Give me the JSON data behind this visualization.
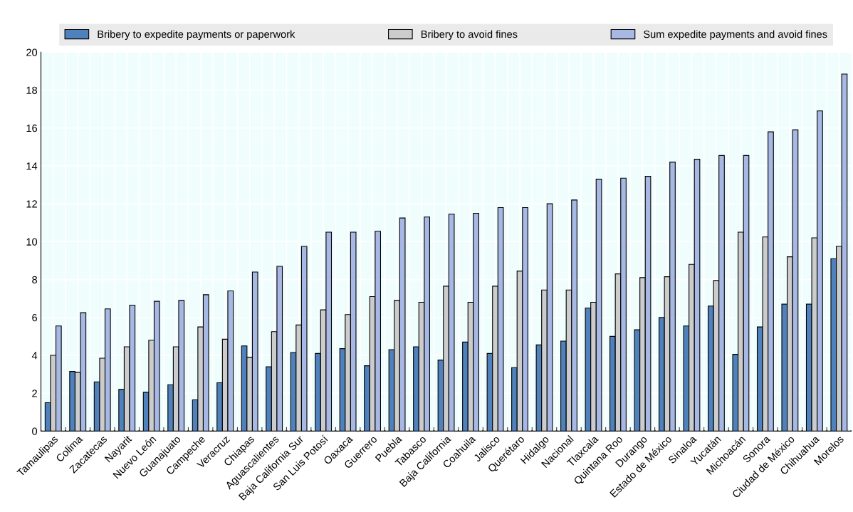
{
  "chart_data": {
    "type": "bar",
    "categories": [
      "Tamaulipas",
      "Colima",
      "Zacatecas",
      "Nayarit",
      "Nuevo León",
      "Guanajuato",
      "Campeche",
      "Veracruz",
      "Chiapas",
      "Aguascalientes",
      "Baja California Sur",
      "San Luis Potosí",
      "Oaxaca",
      "Guerrero",
      "Puebla",
      "Tabasco",
      "Baja California",
      "Coahuila",
      "Jalisco",
      "Querétaro",
      "Hidalgo",
      "Nacional",
      "Tlaxcala",
      "Quintana Roo",
      "Durango",
      "Estado de México",
      "Sinaloa",
      "Yucatán",
      "Michoacán",
      "Sonora",
      "Ciudad de México",
      "Chihuahua",
      "Morelos"
    ],
    "series": [
      {
        "name": "Bribery to expedite payments or paperwork",
        "color": "#4f81bd",
        "values": [
          1.5,
          3.15,
          2.6,
          2.2,
          2.05,
          2.45,
          1.65,
          2.55,
          4.5,
          3.4,
          4.15,
          4.1,
          4.35,
          3.45,
          4.3,
          4.45,
          3.75,
          4.7,
          4.1,
          3.35,
          4.55,
          4.75,
          6.5,
          5.0,
          5.35,
          6.0,
          5.55,
          6.6,
          4.05,
          5.5,
          6.7,
          6.7,
          9.1
        ]
      },
      {
        "name": "Bribery to avoid fines",
        "color": "#cccccc",
        "values": [
          4.0,
          3.1,
          3.85,
          4.45,
          4.8,
          4.45,
          5.5,
          4.85,
          3.9,
          5.25,
          5.6,
          6.4,
          6.15,
          7.1,
          6.9,
          6.8,
          7.65,
          6.8,
          7.65,
          8.45,
          7.45,
          7.45,
          6.8,
          8.3,
          8.1,
          8.15,
          8.8,
          7.95,
          10.5,
          10.25,
          9.2,
          10.2,
          9.75
        ]
      },
      {
        "name": "Sum expedite payments and avoid fines",
        "color": "#a7b8e4",
        "values": [
          5.55,
          6.25,
          6.45,
          6.65,
          6.85,
          6.9,
          7.2,
          7.4,
          8.4,
          8.7,
          9.75,
          10.5,
          10.5,
          10.55,
          11.25,
          11.3,
          11.45,
          11.5,
          11.8,
          11.8,
          12.0,
          12.2,
          13.3,
          13.35,
          13.45,
          14.2,
          14.35,
          14.55,
          14.55,
          15.8,
          15.9,
          16.9,
          18.85
        ]
      }
    ],
    "ylim": [
      0,
      20
    ],
    "yticks": [
      0,
      2,
      4,
      6,
      8,
      10,
      12,
      14,
      16,
      18,
      20
    ],
    "grid": true,
    "legend": "top"
  }
}
